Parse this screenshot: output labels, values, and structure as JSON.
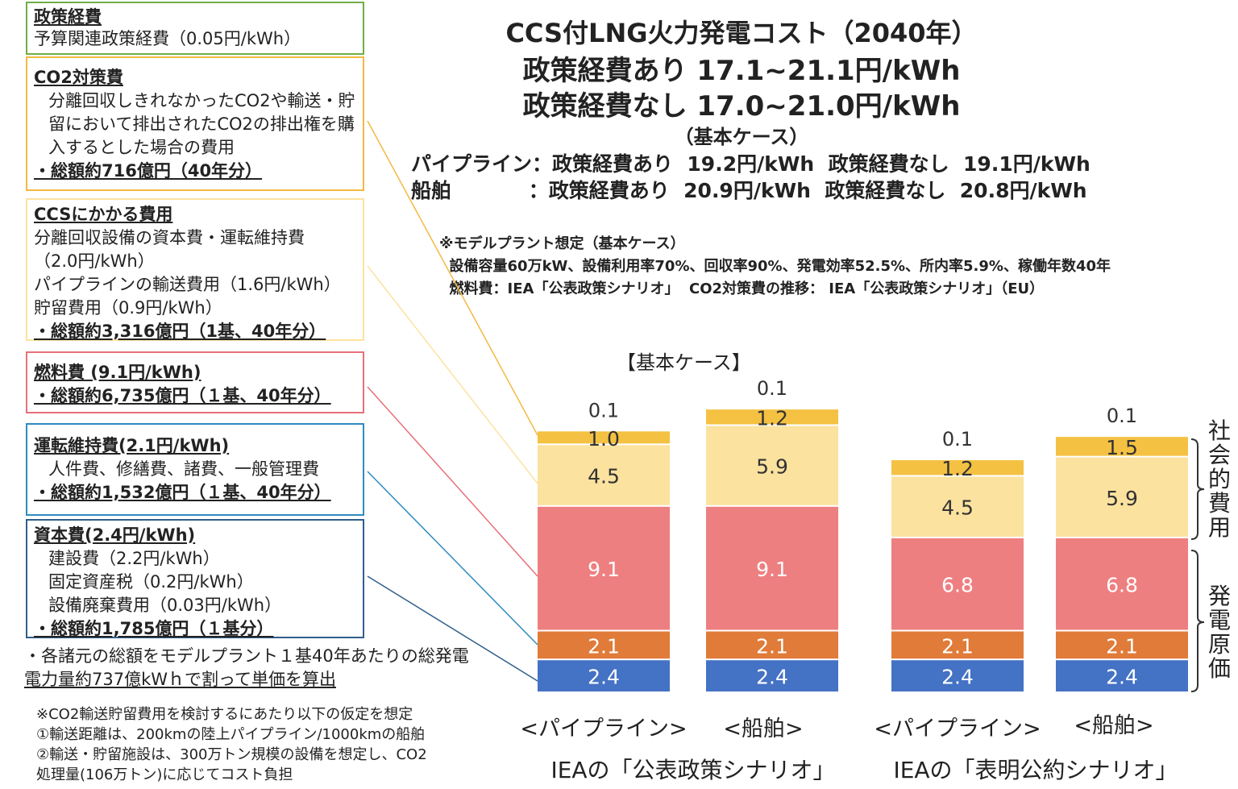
{
  "boxes": {
    "policy": {
      "title": "政策経費",
      "lines": [
        "予算関連政策経費（0.05円/kWh）"
      ],
      "color": "#70AD47"
    },
    "co2": {
      "title": "CO2対策費",
      "lines": [
        "分離回収しきれなかったCO2や輸送・貯",
        "留において排出されたCO2の排出権を購",
        "入するとした場合の費用"
      ],
      "total": "・総額約716億円（40年分）",
      "color": "#F4B942"
    },
    "ccs": {
      "title": "CCSにかかる費用",
      "lines": [
        "分離回収設備の資本費・運転維持費",
        "（2.0円/kWh）",
        "パイプラインの輸送費用（1.6円/kWh）",
        "貯留費用（0.9円/kWh）"
      ],
      "total": "・総額約3,316億円（1基、40年分）",
      "color": "#FBE29F"
    },
    "fuel": {
      "title": "燃料費 (9.1円/kWh)",
      "total": "・総額約6,735億円（１基、40年分）",
      "color": "#E8707A"
    },
    "om": {
      "title": "運転維持費(2.1円/kWh)",
      "lines": [
        "人件費、修繕費、諸費、一般管理費"
      ],
      "total": "・総額約1,532億円（１基、40年分）",
      "color": "#2E8BC0"
    },
    "capital": {
      "title": "資本費(2.4円/kWh)",
      "lines": [
        "建設費（2.2円/kWh）",
        "固定資産税（0.2円/kWh）",
        "設備廃棄費用（0.03円/kWh）"
      ],
      "total": "・総額約1,785億円（１基分）",
      "color": "#2F5F8A"
    }
  },
  "calc_note": [
    "・各諸元の総額をモデルプラント１基40年あたりの総発電",
    "電力量約737億kWｈで割って単価を算出"
  ],
  "assumptions": [
    "※CO2輸送貯留費用を検討するにあたり以下の仮定を想定",
    "①輸送距離は、200kmの陸上パイプライン/1000kmの船舶",
    "②輸送・貯留施設は、300万トン規模の設備を想定し、CO2",
    "処理量(106万トン)に応じてコスト負担"
  ],
  "header": {
    "title": "CCS付LNG火力発電コスト（2040年）",
    "with_policy": "政策経費あり  17.1~21.1円/kWh",
    "without_policy": "政策経費なし  17.0~21.0円/kWh",
    "base_case": "（基本ケース）",
    "pipeline": "パイプライン：政策経費あり  19.2円/kWh  政策経費なし  19.1円/kWh",
    "ship": "船舶           ：政策経費あり  20.9円/kWh  政策経費なし  20.8円/kWh"
  },
  "model_note": [
    "※モデルプラント想定（基本ケース）",
    "  設備容量60万kW、設備利用率70%、回収率90%、発電効率52.5%、所内率5.9%、稼働年数40年",
    "  燃料費：IEA「公表政策シナリオ」  CO2対策費の推移： IEA「公表政策シナリオ」（EU）"
  ],
  "chart_data": {
    "type": "bar",
    "stacked": true,
    "title": "【基本ケース】",
    "categories": [
      "<パイプライン>",
      "<船舶>",
      "<パイプライン>",
      "<船舶>"
    ],
    "groups": [
      "IEAの「公表政策シナリオ」",
      "IEAの「表明公約シナリオ」"
    ],
    "series": [
      {
        "key": "capital",
        "values": [
          2.4,
          2.4,
          2.4,
          2.4
        ],
        "color": "#4472C4",
        "label_color": "#ffffff"
      },
      {
        "key": "om",
        "values": [
          2.1,
          2.1,
          2.1,
          2.1
        ],
        "color": "#E07B39",
        "label_color": "#ffffff"
      },
      {
        "key": "fuel",
        "values": [
          9.1,
          9.1,
          6.8,
          6.8
        ],
        "color": "#EE7F80",
        "label_color": "#ffffff"
      },
      {
        "key": "ccs",
        "values": [
          4.5,
          5.9,
          4.5,
          5.9
        ],
        "color": "#FBE29F",
        "label_color": "#333333"
      },
      {
        "key": "co2",
        "values": [
          1.0,
          1.2,
          1.2,
          1.5
        ],
        "color": "#F4C142",
        "label_color": "#333333"
      },
      {
        "key": "policy",
        "values": [
          0.1,
          0.1,
          0.1,
          0.1
        ],
        "color": "#70AD47",
        "label_color": "#333333"
      }
    ],
    "brackets": [
      "社会的費用",
      "発電原価"
    ]
  }
}
